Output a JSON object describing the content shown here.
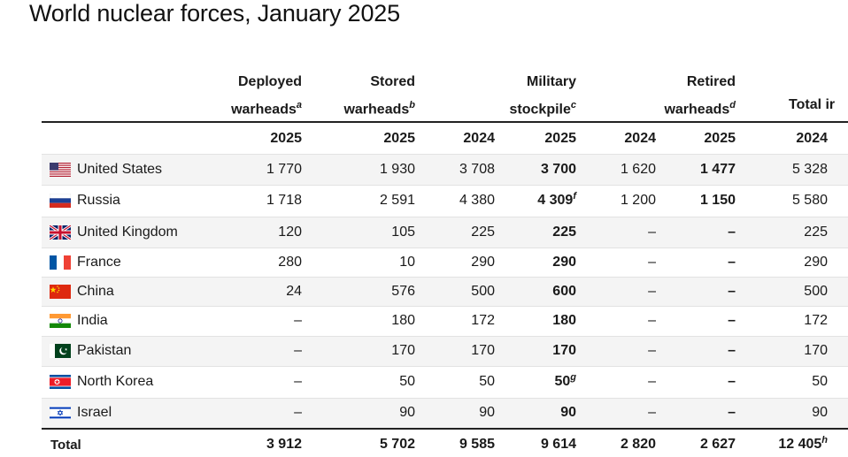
{
  "title": "World nuclear forces, January 2025",
  "headers": {
    "deployed": {
      "line1": "Deployed",
      "line2": "warheads",
      "note": "a"
    },
    "stored": {
      "line1": "Stored",
      "line2": "warheads",
      "note": "b"
    },
    "military": {
      "line1": "Military",
      "line2": "stockpile",
      "note": "c"
    },
    "retired": {
      "line1": "Retired",
      "line2": "warheads",
      "note": "d"
    },
    "total": {
      "line2": "Total ir"
    }
  },
  "years": [
    "2025",
    "2025",
    "2024",
    "2025",
    "2024",
    "2025",
    "2024"
  ],
  "rows": [
    {
      "country": "United States",
      "flag": "us-flag-icon",
      "cells": [
        "1 770",
        "1 930",
        "3 708",
        "3 700",
        "1 620",
        "1 477",
        "5 328"
      ],
      "notes": [
        "",
        "",
        "",
        "",
        "",
        "",
        ""
      ]
    },
    {
      "country": "Russia",
      "flag": "russia-flag-icon",
      "cells": [
        "1 718",
        "2 591",
        "4 380",
        "4 309",
        "1 200",
        "1 150",
        "5 580"
      ],
      "notes": [
        "",
        "",
        "",
        "f",
        "",
        "",
        ""
      ]
    },
    {
      "country": "United Kingdom",
      "flag": "uk-flag-icon",
      "cells": [
        "120",
        "105",
        "225",
        "225",
        "–",
        "–",
        "225"
      ],
      "notes": [
        "",
        "",
        "",
        "",
        "",
        "",
        ""
      ]
    },
    {
      "country": "France",
      "flag": "france-flag-icon",
      "cells": [
        "280",
        "10",
        "290",
        "290",
        "–",
        "–",
        "290"
      ],
      "notes": [
        "",
        "",
        "",
        "",
        "",
        "",
        ""
      ]
    },
    {
      "country": "China",
      "flag": "china-flag-icon",
      "cells": [
        "24",
        "576",
        "500",
        "600",
        "–",
        "–",
        "500"
      ],
      "notes": [
        "",
        "",
        "",
        "",
        "",
        "",
        ""
      ]
    },
    {
      "country": "India",
      "flag": "india-flag-icon",
      "cells": [
        "–",
        "180",
        "172",
        "180",
        "–",
        "–",
        "172"
      ],
      "notes": [
        "",
        "",
        "",
        "",
        "",
        "",
        ""
      ]
    },
    {
      "country": "Pakistan",
      "flag": "pakistan-flag-icon",
      "cells": [
        "–",
        "170",
        "170",
        "170",
        "–",
        "–",
        "170"
      ],
      "notes": [
        "",
        "",
        "",
        "",
        "",
        "",
        ""
      ]
    },
    {
      "country": "North Korea",
      "flag": "north-korea-flag-icon",
      "cells": [
        "–",
        "50",
        "50",
        "50",
        "–",
        "–",
        "50"
      ],
      "notes": [
        "",
        "",
        "",
        "g",
        "",
        "",
        ""
      ]
    },
    {
      "country": "Israel",
      "flag": "israel-flag-icon",
      "cells": [
        "–",
        "90",
        "90",
        "90",
        "–",
        "–",
        "90"
      ],
      "notes": [
        "",
        "",
        "",
        "",
        "",
        "",
        ""
      ]
    }
  ],
  "total": {
    "label": "Total",
    "cells": [
      "3 912",
      "5 702",
      "9 585",
      "9 614",
      "2 820",
      "2 627",
      "12 405"
    ],
    "notes": [
      "",
      "",
      "",
      "",
      "",
      "",
      "h"
    ]
  }
}
